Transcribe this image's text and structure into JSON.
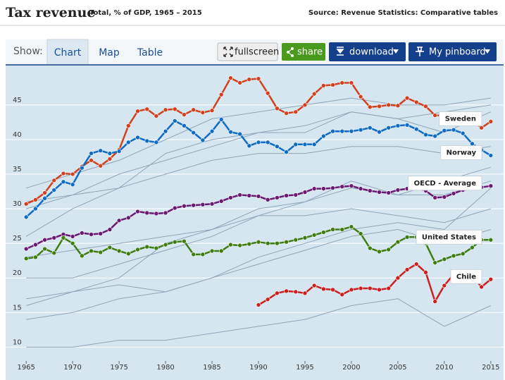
{
  "header": {
    "title": "Tax revenue",
    "subtitle": "Total, % of GDP, 1965 – 2015",
    "source": "Source: Revenue Statistics: Comparative tables"
  },
  "nav": {
    "label": "Show:",
    "tabs": [
      "Chart",
      "Map",
      "Table"
    ]
  },
  "buttons": [
    "fullscreen",
    "share",
    "download",
    "My pinboard"
  ],
  "chart_data": {
    "type": "line",
    "x": [
      1965,
      1966,
      1967,
      1968,
      1969,
      1970,
      1971,
      1972,
      1973,
      1974,
      1975,
      1976,
      1977,
      1978,
      1979,
      1980,
      1981,
      1982,
      1983,
      1984,
      1985,
      1986,
      1987,
      1988,
      1989,
      1990,
      1991,
      1992,
      1993,
      1994,
      1995,
      1996,
      1997,
      1998,
      1999,
      2000,
      2001,
      2002,
      2003,
      2004,
      2005,
      2006,
      2007,
      2008,
      2009,
      2010,
      2011,
      2012,
      2013,
      2014,
      2015
    ],
    "xlim": [
      1964,
      2016
    ],
    "xticks": [
      1965,
      1970,
      1975,
      1980,
      1985,
      1990,
      1995,
      2000,
      2005,
      2010,
      2015
    ],
    "ylim": [
      8,
      51
    ],
    "yticks": [
      10,
      15,
      20,
      25,
      30,
      35,
      40,
      45
    ],
    "grid": true,
    "series": [
      {
        "name": "Sweden",
        "color": "#d2401e",
        "values": [
          30.7,
          31.3,
          32.3,
          34.1,
          35.1,
          35.0,
          36.1,
          37.0,
          36.2,
          37.2,
          38.5,
          42.0,
          44.1,
          44.4,
          43.4,
          44.3,
          44.4,
          43.6,
          44.3,
          43.9,
          44.2,
          46.5,
          48.9,
          48.2,
          48.7,
          48.8,
          46.7,
          44.5,
          43.8,
          44.0,
          45.0,
          46.6,
          47.8,
          47.9,
          48.2,
          48.2,
          46.2,
          44.7,
          44.8,
          45.0,
          44.9,
          46.0,
          45.4,
          44.8,
          43.5,
          43.5,
          42.7,
          42.3,
          42.8,
          41.7,
          42.6
        ]
      },
      {
        "name": "Norway",
        "color": "#0f6cc4",
        "values": [
          28.8,
          30.0,
          31.5,
          32.7,
          33.9,
          33.5,
          35.9,
          38.0,
          38.4,
          38.0,
          38.3,
          39.6,
          40.3,
          39.8,
          39.6,
          41.2,
          42.7,
          42.0,
          41.0,
          39.9,
          41.2,
          42.9,
          41.1,
          40.8,
          39.1,
          39.6,
          39.6,
          39.0,
          38.2,
          39.3,
          39.3,
          39.3,
          40.5,
          41.2,
          41.2,
          41.2,
          41.4,
          41.7,
          41.1,
          41.7,
          42.0,
          42.1,
          41.5,
          40.7,
          40.5,
          41.3,
          41.4,
          40.9,
          39.4,
          38.5,
          37.7
        ]
      },
      {
        "name": "OECD - Average",
        "color": "#6b1a72",
        "values": [
          24.2,
          24.8,
          25.5,
          25.8,
          26.3,
          26.0,
          26.5,
          26.3,
          26.4,
          27.0,
          28.3,
          28.7,
          29.6,
          29.4,
          29.3,
          29.4,
          30.1,
          30.4,
          30.5,
          30.6,
          30.7,
          31.1,
          31.6,
          32.0,
          31.9,
          31.8,
          31.3,
          31.6,
          31.9,
          32.0,
          32.4,
          32.9,
          32.9,
          33.0,
          33.2,
          33.3,
          32.9,
          32.6,
          32.4,
          32.3,
          32.7,
          32.9,
          33.0,
          32.6,
          31.6,
          31.7,
          32.2,
          32.7,
          32.9,
          33.1,
          33.3
        ]
      },
      {
        "name": "United States",
        "color": "#3f7d12",
        "values": [
          22.8,
          23.0,
          24.2,
          23.6,
          25.8,
          25.0,
          23.2,
          23.9,
          23.7,
          24.4,
          23.9,
          23.5,
          24.1,
          24.5,
          24.3,
          24.8,
          25.2,
          25.3,
          23.4,
          23.4,
          23.9,
          23.9,
          24.8,
          24.7,
          24.9,
          25.2,
          25.0,
          25.0,
          25.2,
          25.5,
          25.8,
          26.2,
          26.6,
          27.0,
          27.0,
          27.4,
          26.4,
          24.3,
          23.8,
          24.1,
          25.2,
          25.9,
          25.9,
          25.0,
          22.2,
          22.7,
          23.2,
          23.5,
          24.4,
          25.5,
          25.5
        ]
      },
      {
        "name": "Chile",
        "color": "#cc2020",
        "values": [
          null,
          null,
          null,
          null,
          null,
          null,
          null,
          null,
          null,
          null,
          null,
          null,
          null,
          null,
          null,
          null,
          null,
          null,
          null,
          null,
          null,
          null,
          null,
          null,
          null,
          16.1,
          16.9,
          17.8,
          18.1,
          18.0,
          17.8,
          18.9,
          18.4,
          18.3,
          17.6,
          18.3,
          18.5,
          18.5,
          18.3,
          18.5,
          20.0,
          21.2,
          22.0,
          20.8,
          16.6,
          18.9,
          20.5,
          20.5,
          20.3,
          18.7,
          19.8
        ]
      }
    ],
    "background": {
      "color": "#8ea5b8",
      "x": [
        1965,
        1970,
        1975,
        1980,
        1985,
        1990,
        1995,
        2000,
        2005,
        2010,
        2015
      ],
      "series": [
        {
          "values": [
            33,
            35,
            37,
            40,
            43,
            44,
            45,
            46,
            45,
            45,
            46
          ]
        },
        {
          "values": [
            30,
            32,
            35,
            37,
            39,
            41,
            42,
            44,
            43,
            44,
            45
          ]
        },
        {
          "values": [
            26,
            30,
            33,
            38,
            40,
            41,
            41,
            44,
            43,
            41,
            44
          ]
        },
        {
          "values": [
            16,
            18,
            20,
            25,
            27,
            30,
            31,
            34,
            32,
            34,
            36
          ]
        },
        {
          "values": [
            14,
            15,
            17,
            18,
            20,
            23,
            25,
            27,
            28,
            27,
            33
          ]
        },
        {
          "values": [
            10,
            10,
            11,
            11,
            12,
            13,
            14,
            16,
            17,
            13,
            16
          ]
        },
        {
          "values": [
            20,
            20,
            22,
            24,
            26,
            29,
            31,
            33,
            32,
            32,
            34
          ]
        },
        {
          "values": [
            23,
            24,
            25,
            26,
            27,
            29,
            29,
            30,
            29,
            28,
            30
          ]
        },
        {
          "values": [
            17,
            18,
            19,
            18,
            20,
            22,
            24,
            26,
            27,
            25,
            27
          ]
        },
        {
          "values": [
            31,
            32,
            33,
            35,
            37,
            38,
            38,
            39,
            39,
            38,
            39
          ]
        }
      ]
    }
  }
}
